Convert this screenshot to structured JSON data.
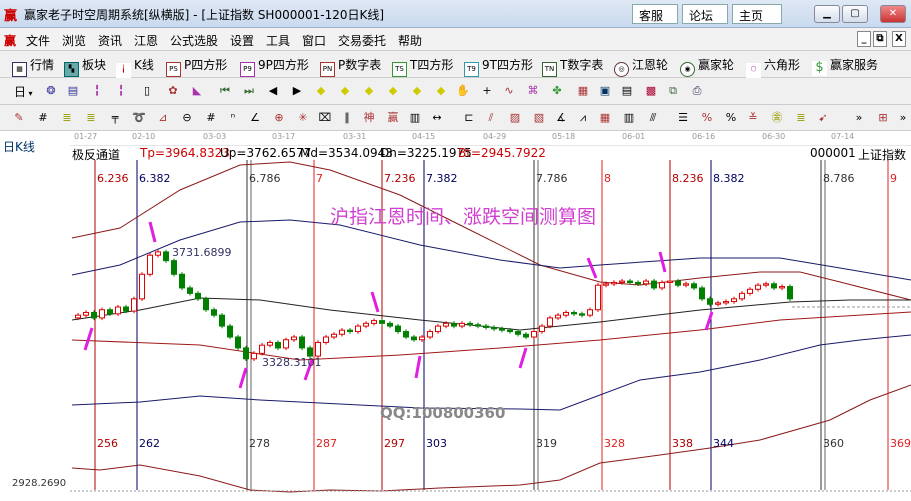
{
  "window": {
    "logo": "赢",
    "title": "赢家老子时空周期系统[纵横版] - [上证指数  SH000001-120日K线]",
    "links": [
      "客服",
      "论坛",
      "主页"
    ],
    "controls": [
      "minimize",
      "maximize",
      "close"
    ]
  },
  "menu": {
    "logo": "赢",
    "items": [
      "文件",
      "浏览",
      "资讯",
      "江恩",
      "公式选股",
      "设置",
      "工具",
      "窗口",
      "交易委托",
      "帮助"
    ],
    "mdi_controls": [
      "_",
      "restore",
      "X"
    ]
  },
  "toolbar1": [
    {
      "icon": "table-icon",
      "label": "行情"
    },
    {
      "icon": "blocks-icon",
      "label": "板块"
    },
    {
      "icon": "kline-icon",
      "label": "K线"
    },
    {
      "icon": "PS",
      "label": "P四方形"
    },
    {
      "icon": "P9",
      "label": "9P四方形"
    },
    {
      "icon": "PN",
      "label": "P数字表"
    },
    {
      "icon": "TS",
      "label": "T四方形"
    },
    {
      "icon": "T9",
      "label": "9T四方形"
    },
    {
      "icon": "TN",
      "label": "T数字表"
    },
    {
      "icon": "gann-wheel-icon",
      "label": "江恩轮"
    },
    {
      "icon": "winner-wheel-icon",
      "label": "赢家轮"
    },
    {
      "icon": "hexagon-icon",
      "label": "六角形"
    },
    {
      "icon": "dollar-icon",
      "label": "赢家服务"
    }
  ],
  "toolbar2": {
    "period": "日"
  },
  "toolbar3": {
    "more": "»"
  },
  "side_label": "日K线",
  "dates": [
    "01-27",
    "02-10",
    "03-03",
    "03-17",
    "03-31",
    "04-15",
    "04-29",
    "05-18",
    "06-01",
    "06-16",
    "06-30",
    "07-14"
  ],
  "indicator": {
    "name": "极反通道",
    "tp": "Tp=3964.8323",
    "up": "Up=3762.6577",
    "md": "Md=3534.0943",
    "dn": "Dn=3225.1975",
    "bt": "Bt=2945.7922"
  },
  "stock": {
    "code": "000001",
    "name": "上证指数"
  },
  "annotation": "沪指江恩时间、涨跌空间测算图",
  "qq": "QQ:100800360",
  "price_labels": {
    "high": "3731.6899",
    "low": "3328.3101",
    "bottom": "2928.2690"
  },
  "time_lines": [
    {
      "top": "6.236",
      "bottom": "256",
      "color": "#b00000"
    },
    {
      "top": "6.382",
      "bottom": "262",
      "color": "#000060"
    },
    {
      "top": "6.786",
      "bottom": "278",
      "color": "#333333"
    },
    {
      "top": "7",
      "bottom": "287",
      "color": "#e02020"
    },
    {
      "top": "7.236",
      "bottom": "297",
      "color": "#b00000"
    },
    {
      "top": "7.382",
      "bottom": "303",
      "color": "#000060"
    },
    {
      "top": "7.786",
      "bottom": "319",
      "color": "#333333"
    },
    {
      "top": "8",
      "bottom": "328",
      "color": "#e02020"
    },
    {
      "top": "8.236",
      "bottom": "338",
      "color": "#b00000"
    },
    {
      "top": "8.382",
      "bottom": "344",
      "color": "#000060"
    },
    {
      "top": "8.786",
      "bottom": "360",
      "color": "#333333"
    },
    {
      "top": "9",
      "bottom": "369",
      "color": "#e02020"
    }
  ],
  "candles_close": [
    3500,
    3510,
    3490,
    3520,
    3505,
    3530,
    3515,
    3560,
    3650,
    3720,
    3732,
    3700,
    3650,
    3600,
    3580,
    3560,
    3520,
    3500,
    3460,
    3420,
    3380,
    3340,
    3360,
    3390,
    3400,
    3380,
    3410,
    3420,
    3380,
    3350,
    3400,
    3420,
    3430,
    3445,
    3440,
    3460,
    3470,
    3480,
    3470,
    3460,
    3440,
    3420,
    3410,
    3420,
    3440,
    3460,
    3470,
    3460,
    3470,
    3465,
    3460,
    3455,
    3450,
    3445,
    3440,
    3430,
    3420,
    3440,
    3460,
    3490,
    3500,
    3510,
    3505,
    3500,
    3520,
    3610,
    3615,
    3620,
    3625,
    3620,
    3615,
    3625,
    3600,
    3620,
    3625,
    3610,
    3615,
    3600,
    3560,
    3540,
    3545,
    3550,
    3560,
    3580,
    3595,
    3610,
    3615,
    3600,
    3605,
    3560
  ],
  "colors": {
    "up": "#e00000",
    "down": "#008000",
    "arrow": "#e020e0",
    "annotation": "#d040d0"
  }
}
